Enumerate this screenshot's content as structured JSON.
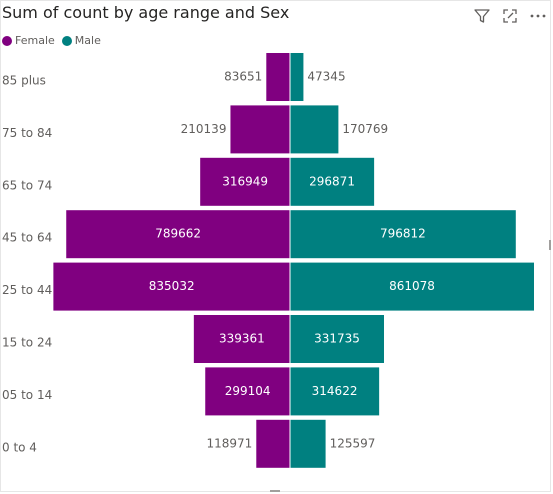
{
  "visual": {
    "title": "Sum of count by age range and Sex",
    "toolbar": {
      "filter_icon": "filter-icon",
      "focus_icon": "focus-mode-icon",
      "more_icon": "more-options-icon"
    }
  },
  "colors": {
    "Female": "#800080",
    "Male": "#008080",
    "label_dark": "#605e5c",
    "label_light": "#ffffff"
  },
  "chart_data": {
    "type": "bar",
    "title": "Sum of count by age range and Sex",
    "orientation": "horizontal",
    "layout": "population-pyramid",
    "categories": [
      "85 plus",
      "75 to 84",
      "65 to 74",
      "45 to 64",
      "25 to 44",
      "15 to 24",
      "05 to 14",
      "0 to 4"
    ],
    "series": [
      {
        "name": "Female",
        "values": [
          83651,
          210139,
          316949,
          789662,
          835032,
          339361,
          299104,
          118971
        ]
      },
      {
        "name": "Male",
        "values": [
          47345,
          170769,
          296871,
          796812,
          861078,
          331735,
          314622,
          125597
        ]
      }
    ],
    "legend": "top-left",
    "grid": false
  }
}
